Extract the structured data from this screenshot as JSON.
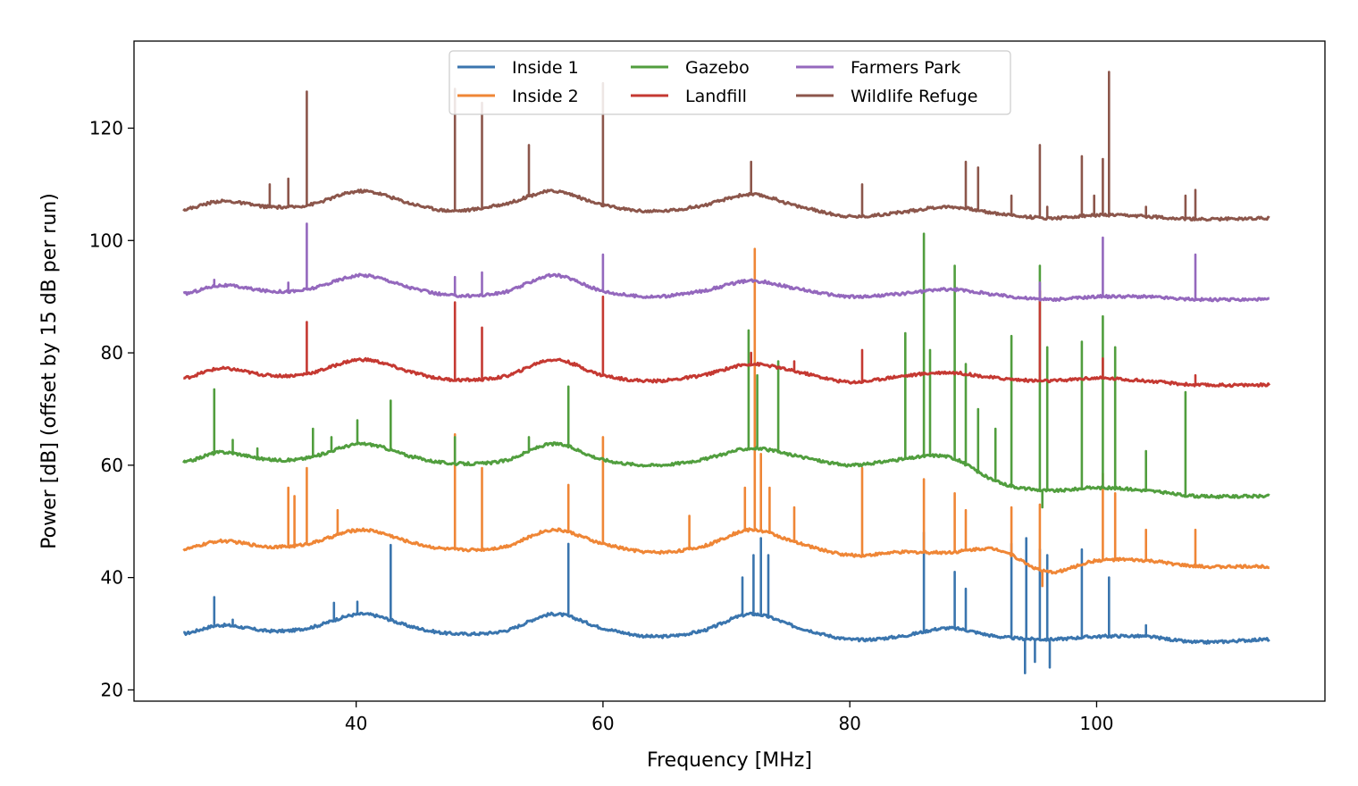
{
  "chart_data": {
    "type": "line",
    "title": "",
    "xlabel": "Frequency [MHz]",
    "ylabel": "Power [dB] (offset by 15 dB per run)",
    "xlim": [
      22,
      118.5
    ],
    "ylim": [
      18,
      135.5
    ],
    "xticks": [
      40,
      60,
      80,
      100
    ],
    "yticks": [
      20,
      40,
      60,
      80,
      100,
      120
    ],
    "grid": false,
    "legend": {
      "placement": "top-center",
      "columns": 3
    },
    "series": [
      {
        "name": "Inside 1",
        "color": "#3a75ae",
        "offset": 0,
        "x": [
          26,
          29,
          33,
          36,
          40.5,
          45,
          48,
          52,
          56,
          60,
          64,
          68,
          72,
          76,
          80,
          84,
          88,
          92,
          96,
          100,
          104,
          108,
          114
        ],
        "y": [
          30.0,
          31.5,
          30.5,
          31.0,
          33.5,
          31.0,
          30.0,
          30.5,
          33.5,
          31.0,
          29.5,
          30.5,
          33.5,
          31.0,
          29.0,
          29.5,
          31.0,
          29.5,
          29.0,
          29.5,
          29.5,
          28.5,
          29.0
        ],
        "peaks": [
          [
            28.5,
            36.5
          ],
          [
            30.0,
            32.5
          ],
          [
            38.2,
            35.5
          ],
          [
            40.1,
            35.7
          ],
          [
            42.8,
            45.8
          ],
          [
            57.2,
            46.0
          ],
          [
            71.3,
            40.0
          ],
          [
            72.2,
            44.0
          ],
          [
            72.8,
            47.0
          ],
          [
            73.4,
            44.0
          ],
          [
            86.0,
            48.0
          ],
          [
            88.5,
            41.0
          ],
          [
            89.4,
            38.0
          ],
          [
            93.1,
            46.0
          ],
          [
            94.3,
            47.0
          ],
          [
            95.4,
            45.0
          ],
          [
            96.0,
            44.0
          ],
          [
            98.8,
            45.0
          ],
          [
            101.0,
            40.0
          ],
          [
            104.0,
            31.5
          ]
        ],
        "dips": [
          [
            94.2,
            23.0
          ],
          [
            95.0,
            25.0
          ],
          [
            96.2,
            24.0
          ]
        ]
      },
      {
        "name": "Inside 2",
        "color": "#ef8636",
        "offset": 15,
        "x": [
          26,
          29,
          33,
          36,
          40.5,
          45,
          48,
          52,
          56,
          60,
          64,
          68,
          72,
          76,
          80,
          84,
          88,
          92,
          96,
          100,
          104,
          108,
          114
        ],
        "y": [
          45.0,
          46.5,
          45.5,
          46.0,
          48.5,
          46.0,
          45.0,
          45.5,
          48.5,
          46.0,
          44.5,
          45.5,
          48.5,
          46.0,
          44.0,
          44.5,
          44.5,
          45.0,
          41.0,
          43.0,
          43.0,
          42.0,
          42.0
        ],
        "peaks": [
          [
            34.5,
            56.0
          ],
          [
            35.0,
            54.5
          ],
          [
            36.0,
            59.5
          ],
          [
            38.5,
            52.0
          ],
          [
            48.0,
            65.5
          ],
          [
            50.2,
            59.5
          ],
          [
            57.2,
            56.5
          ],
          [
            60.0,
            65.0
          ],
          [
            67.0,
            51.0
          ],
          [
            71.5,
            56.0
          ],
          [
            72.3,
            98.5
          ],
          [
            72.8,
            62.0
          ],
          [
            73.5,
            56.0
          ],
          [
            75.5,
            52.5
          ],
          [
            81.0,
            59.5
          ],
          [
            86.0,
            57.5
          ],
          [
            88.5,
            55.0
          ],
          [
            89.4,
            52.0
          ],
          [
            93.1,
            52.5
          ],
          [
            95.4,
            53.0
          ],
          [
            100.5,
            58.5
          ],
          [
            101.5,
            55.0
          ],
          [
            104.0,
            48.5
          ],
          [
            108.0,
            48.5
          ]
        ],
        "dips": [
          [
            95.6,
            38.5
          ]
        ]
      },
      {
        "name": "Gazebo",
        "color": "#519e3e",
        "offset": 30,
        "x": [
          26,
          29,
          33,
          36,
          40.5,
          45,
          48,
          52,
          56,
          60,
          64,
          68,
          72,
          76,
          80,
          84,
          88,
          92,
          96,
          100,
          104,
          108,
          114
        ],
        "y": [
          60.5,
          62.3,
          61.0,
          61.3,
          63.8,
          61.3,
          60.3,
          60.8,
          63.8,
          61.0,
          60.0,
          61.0,
          63.0,
          61.5,
          60.0,
          61.0,
          61.5,
          57.0,
          55.5,
          56.0,
          55.5,
          54.5,
          54.5
        ],
        "peaks": [
          [
            28.5,
            73.5
          ],
          [
            30.0,
            64.5
          ],
          [
            32.0,
            63.0
          ],
          [
            36.5,
            66.5
          ],
          [
            38.0,
            65.0
          ],
          [
            40.1,
            68.0
          ],
          [
            42.8,
            71.5
          ],
          [
            48.0,
            65.0
          ],
          [
            54.0,
            65.0
          ],
          [
            57.2,
            74.0
          ],
          [
            71.8,
            84.0
          ],
          [
            72.5,
            76.0
          ],
          [
            74.2,
            78.5
          ],
          [
            84.5,
            83.5
          ],
          [
            86.0,
            101.2
          ],
          [
            86.5,
            80.5
          ],
          [
            88.5,
            95.5
          ],
          [
            89.4,
            78.0
          ],
          [
            90.4,
            70.0
          ],
          [
            91.8,
            66.5
          ],
          [
            93.1,
            83.0
          ],
          [
            95.4,
            95.5
          ],
          [
            96.0,
            81.0
          ],
          [
            98.8,
            82.0
          ],
          [
            100.5,
            86.5
          ],
          [
            101.5,
            81.0
          ],
          [
            104.0,
            62.5
          ],
          [
            107.2,
            73.0
          ]
        ],
        "dips": [
          [
            95.6,
            52.5
          ]
        ]
      },
      {
        "name": "Landfill",
        "color": "#c53932",
        "offset": 45,
        "x": [
          26,
          29,
          33,
          36,
          40.5,
          45,
          48,
          52,
          56,
          60,
          64,
          68,
          72,
          76,
          80,
          84,
          88,
          92,
          96,
          100,
          104,
          108,
          114
        ],
        "y": [
          75.5,
          77.2,
          76.0,
          76.3,
          78.8,
          76.3,
          75.2,
          75.8,
          78.8,
          76.0,
          75.0,
          76.0,
          78.0,
          76.5,
          74.8,
          75.8,
          76.5,
          75.5,
          75.0,
          75.5,
          75.0,
          74.3,
          74.3
        ],
        "peaks": [
          [
            36.0,
            85.5
          ],
          [
            48.0,
            89.0
          ],
          [
            50.2,
            84.5
          ],
          [
            60.0,
            90.0
          ],
          [
            72.0,
            80.0
          ],
          [
            75.5,
            78.5
          ],
          [
            81.0,
            80.5
          ],
          [
            95.4,
            91.0
          ],
          [
            100.5,
            79.0
          ],
          [
            108.0,
            76.0
          ]
        ],
        "dips": []
      },
      {
        "name": "Farmers Park",
        "color": "#9468bd",
        "offset": 60,
        "x": [
          26,
          29,
          33,
          36,
          40.5,
          45,
          48,
          52,
          56,
          60,
          64,
          68,
          72,
          76,
          80,
          84,
          88,
          92,
          96,
          100,
          104,
          108,
          114
        ],
        "y": [
          90.5,
          92.0,
          91.0,
          91.3,
          93.8,
          91.3,
          90.2,
          90.8,
          93.8,
          91.0,
          90.0,
          91.0,
          92.8,
          91.3,
          90.0,
          90.5,
          91.3,
          90.3,
          89.5,
          90.0,
          90.0,
          89.5,
          89.5
        ],
        "peaks": [
          [
            28.5,
            93.0
          ],
          [
            34.5,
            92.5
          ],
          [
            36.0,
            103.0
          ],
          [
            48.0,
            93.5
          ],
          [
            50.2,
            94.3
          ],
          [
            60.0,
            97.5
          ],
          [
            95.4,
            92.5
          ],
          [
            100.5,
            100.5
          ],
          [
            108.0,
            97.5
          ]
        ],
        "dips": []
      },
      {
        "name": "Wildlife Refuge",
        "color": "#8c564b",
        "offset": 75,
        "x": [
          26,
          29,
          33,
          36,
          40.5,
          45,
          48,
          52,
          56,
          60,
          64,
          68,
          72,
          76,
          80,
          84,
          88,
          92,
          96,
          100,
          104,
          108,
          114
        ],
        "y": [
          105.5,
          107.0,
          106.0,
          106.3,
          108.8,
          106.3,
          105.3,
          106.5,
          108.8,
          106.3,
          105.2,
          106.2,
          108.2,
          106.0,
          104.3,
          105.0,
          106.0,
          104.8,
          104.0,
          104.5,
          104.3,
          103.8,
          104.0
        ],
        "peaks": [
          [
            33.0,
            110.0
          ],
          [
            34.5,
            111.0
          ],
          [
            36.0,
            126.5
          ],
          [
            48.0,
            127.0
          ],
          [
            50.2,
            124.5
          ],
          [
            54.0,
            117.0
          ],
          [
            60.0,
            128.0
          ],
          [
            72.0,
            114.0
          ],
          [
            81.0,
            110.0
          ],
          [
            89.4,
            114.0
          ],
          [
            90.4,
            113.0
          ],
          [
            93.1,
            108.0
          ],
          [
            95.4,
            117.0
          ],
          [
            96.0,
            106.0
          ],
          [
            98.8,
            115.0
          ],
          [
            99.8,
            108.0
          ],
          [
            100.5,
            114.5
          ],
          [
            101.0,
            130.0
          ],
          [
            104.0,
            106.0
          ],
          [
            107.2,
            108.0
          ],
          [
            108.0,
            109.0
          ]
        ],
        "dips": []
      }
    ]
  }
}
